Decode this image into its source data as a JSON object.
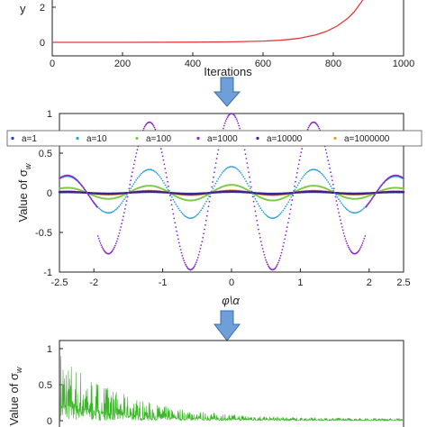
{
  "colors": {
    "arrow": "#6f9fd8",
    "arrow_edge": "#3a6ea8",
    "axis": "#222222"
  },
  "chart_data": [
    {
      "type": "line",
      "xlabel": "Iterations",
      "ylabel": "",
      "xlim": [
        0,
        1000
      ],
      "ylim": [
        0,
        3
      ],
      "xticks": [
        "0",
        "200",
        "400",
        "600",
        "800",
        "1000"
      ],
      "yticks": [
        "0",
        "2"
      ],
      "series": [
        {
          "color": "#e23a3a",
          "x": [
            0,
            200,
            400,
            500,
            600,
            650,
            700,
            750,
            780,
            810,
            840,
            860,
            880,
            900
          ],
          "y": [
            0,
            0.001,
            0.01,
            0.025,
            0.07,
            0.12,
            0.22,
            0.42,
            0.62,
            0.92,
            1.35,
            1.75,
            2.3,
            2.95
          ]
        }
      ]
    },
    {
      "type": "line",
      "xlabel": "φ\\α",
      "ylabel": "Value of σ",
      "ylabel_sub": "w",
      "xlim": [
        -2.5,
        2.5
      ],
      "ylim": [
        -1,
        1
      ],
      "xticks": [
        "-2.5",
        "-2",
        "-1",
        "0",
        "1",
        "2",
        "2.5"
      ],
      "yticks": [
        "-1",
        "-0.5",
        "0",
        "0.5",
        "1"
      ],
      "legend_position": "top",
      "series": [
        {
          "name": "a=1",
          "color": "#1f3ea8",
          "amp": 0.01
        },
        {
          "name": "a=10",
          "color": "#2a9fd6",
          "amp": 0.33
        },
        {
          "name": "a=100",
          "color": "#7fc84a",
          "amp": 0.1
        },
        {
          "name": "a=1000",
          "color": "#8a2bc7",
          "amp": 1.0
        },
        {
          "name": "a=10000",
          "color": "#4a1a8a",
          "amp": 0.02
        },
        {
          "name": "a=1000000",
          "color": "#e0a020",
          "amp": 0.03
        }
      ]
    },
    {
      "type": "line",
      "xlabel": "",
      "ylabel": "Value of σ",
      "ylabel_sub": "w",
      "ylim": [
        0,
        1
      ],
      "yticks": [
        "0",
        "0.5",
        "1"
      ],
      "series": [
        {
          "color": "#3db42a"
        }
      ]
    }
  ]
}
